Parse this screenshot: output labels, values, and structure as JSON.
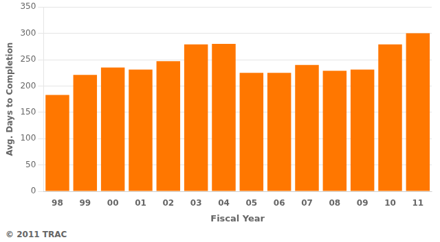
{
  "chart_data": {
    "type": "bar",
    "categories": [
      "98",
      "99",
      "00",
      "01",
      "02",
      "03",
      "04",
      "05",
      "06",
      "07",
      "08",
      "09",
      "10",
      "11"
    ],
    "values": [
      183,
      221,
      235,
      231,
      247,
      279,
      280,
      225,
      225,
      240,
      229,
      231,
      279,
      300
    ],
    "color": "#FF7700",
    "xlabel": "Fiscal Year",
    "ylabel": "Avg. Days to Completion",
    "annotations": [
      "© 2011 TRAC"
    ],
    "ylim": [
      0,
      350
    ],
    "yticks": [
      0,
      50,
      100,
      150,
      200,
      250,
      300,
      350
    ],
    "grid": true
  }
}
